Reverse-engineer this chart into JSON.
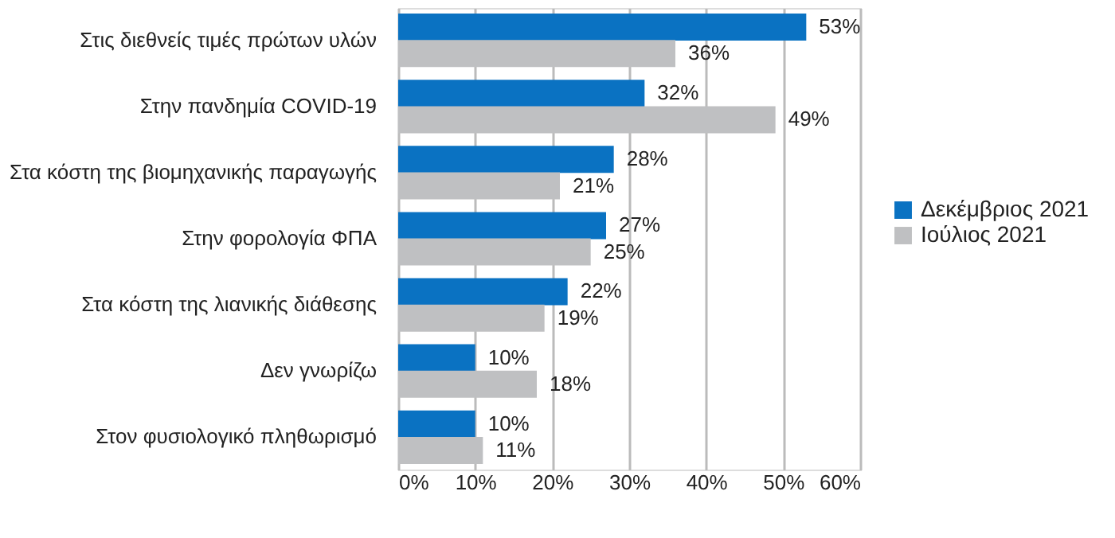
{
  "chart_data": {
    "type": "bar",
    "orientation": "horizontal",
    "categories": [
      "Στις διεθνείς τιμές πρώτων υλών",
      "Στην πανδημία COVID-19",
      "Στα κόστη της βιομηχανικής παραγωγής",
      "Στην φορολογία ΦΠΑ",
      "Στα κόστη της λιανικής διάθεσης",
      "Δεν γνωρίζω",
      "Στον φυσιολογικό πληθωρισμό"
    ],
    "series": [
      {
        "name": "Δεκέμβριος 2021",
        "color": "#0a72c2",
        "values": [
          53,
          32,
          28,
          27,
          22,
          10,
          10
        ],
        "value_labels": [
          "53%",
          "32%",
          "28%",
          "27%",
          "22%",
          "10%",
          "10%"
        ]
      },
      {
        "name": "Ιούλιος 2021",
        "color": "#bfc0c2",
        "values": [
          36,
          49,
          21,
          25,
          19,
          18,
          11
        ],
        "value_labels": [
          "36%",
          "49%",
          "21%",
          "25%",
          "19%",
          "18%",
          "11%"
        ]
      }
    ],
    "xlim": [
      0,
      60
    ],
    "xticks": [
      {
        "value": 0,
        "label": "0%"
      },
      {
        "value": 10,
        "label": "10%"
      },
      {
        "value": 20,
        "label": "20%"
      },
      {
        "value": 30,
        "label": "30%"
      },
      {
        "value": 40,
        "label": "40%"
      },
      {
        "value": 50,
        "label": "50%"
      },
      {
        "value": 60,
        "label": "60%"
      }
    ],
    "grid": "x",
    "legend": "right"
  }
}
